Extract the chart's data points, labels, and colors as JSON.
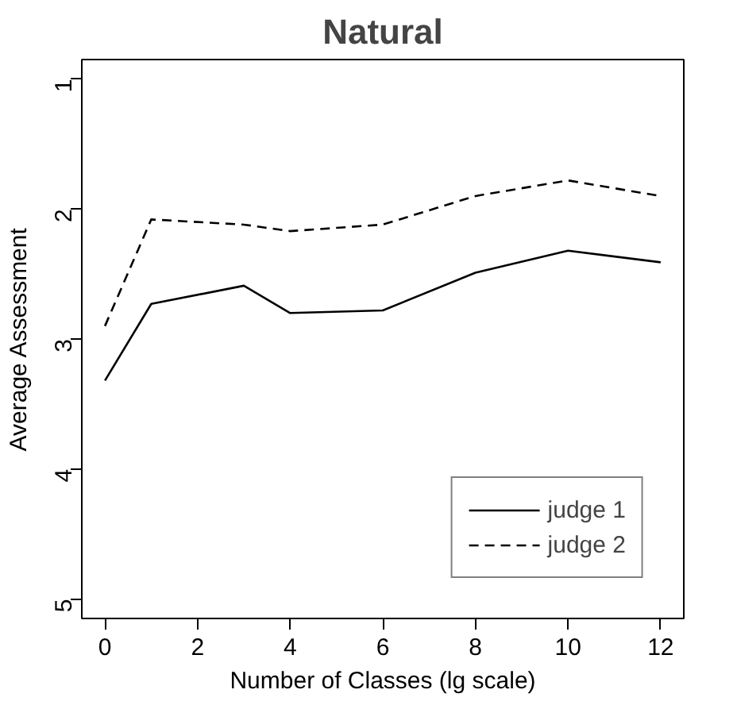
{
  "chart_data": {
    "type": "line",
    "title": "Natural",
    "xlabel": "Number of Classes (lg scale)",
    "ylabel": "Average Assessment",
    "x": [
      0,
      1,
      3,
      4,
      6,
      8,
      10,
      12
    ],
    "series": [
      {
        "name": "judge 1",
        "color": "#000000",
        "line_style": "solid",
        "values": [
          3.32,
          2.73,
          2.59,
          2.8,
          2.78,
          2.49,
          2.32,
          2.41
        ]
      },
      {
        "name": "judge 2",
        "color": "#000000",
        "line_style": "dashed",
        "values": [
          2.9,
          2.08,
          2.12,
          2.17,
          2.12,
          1.9,
          1.78,
          1.9
        ]
      }
    ],
    "xlim": [
      -0.5,
      12.5
    ],
    "ylim": [
      5.15,
      0.85
    ],
    "xticks": [
      0,
      2,
      4,
      6,
      8,
      10,
      12
    ],
    "yticks": [
      1,
      2,
      3,
      4,
      5
    ],
    "legend": "bottom right",
    "grid": false,
    "marker": "none"
  }
}
